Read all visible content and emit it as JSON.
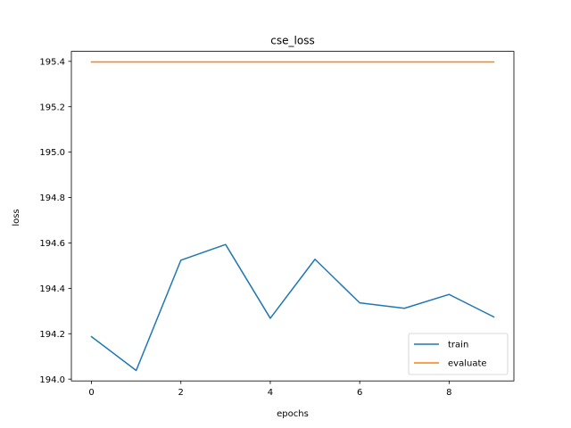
{
  "chart_data": {
    "type": "line",
    "title": "cse_loss",
    "xlabel": "epochs",
    "ylabel": "loss",
    "xlim": [
      -0.45,
      9.45
    ],
    "ylim": [
      193.992,
      195.444
    ],
    "xticks": [
      0,
      2,
      4,
      6,
      8
    ],
    "yticks": [
      194.0,
      194.2,
      194.4,
      194.6,
      194.8,
      195.0,
      195.2,
      195.4
    ],
    "grid": false,
    "legend_position": "lower-right",
    "series": [
      {
        "name": "train",
        "color": "#1f77b4",
        "x": [
          0,
          1,
          2,
          3,
          4,
          5,
          6,
          7,
          8,
          9
        ],
        "values": [
          194.187,
          194.038,
          194.524,
          194.593,
          194.268,
          194.528,
          194.336,
          194.312,
          194.373,
          194.274
        ]
      },
      {
        "name": "evaluate",
        "color": "#ff7f0e",
        "x": [
          0,
          1,
          2,
          3,
          4,
          5,
          6,
          7,
          8,
          9
        ],
        "values": [
          195.397,
          195.397,
          195.397,
          195.397,
          195.397,
          195.397,
          195.397,
          195.397,
          195.397,
          195.397
        ]
      }
    ]
  }
}
